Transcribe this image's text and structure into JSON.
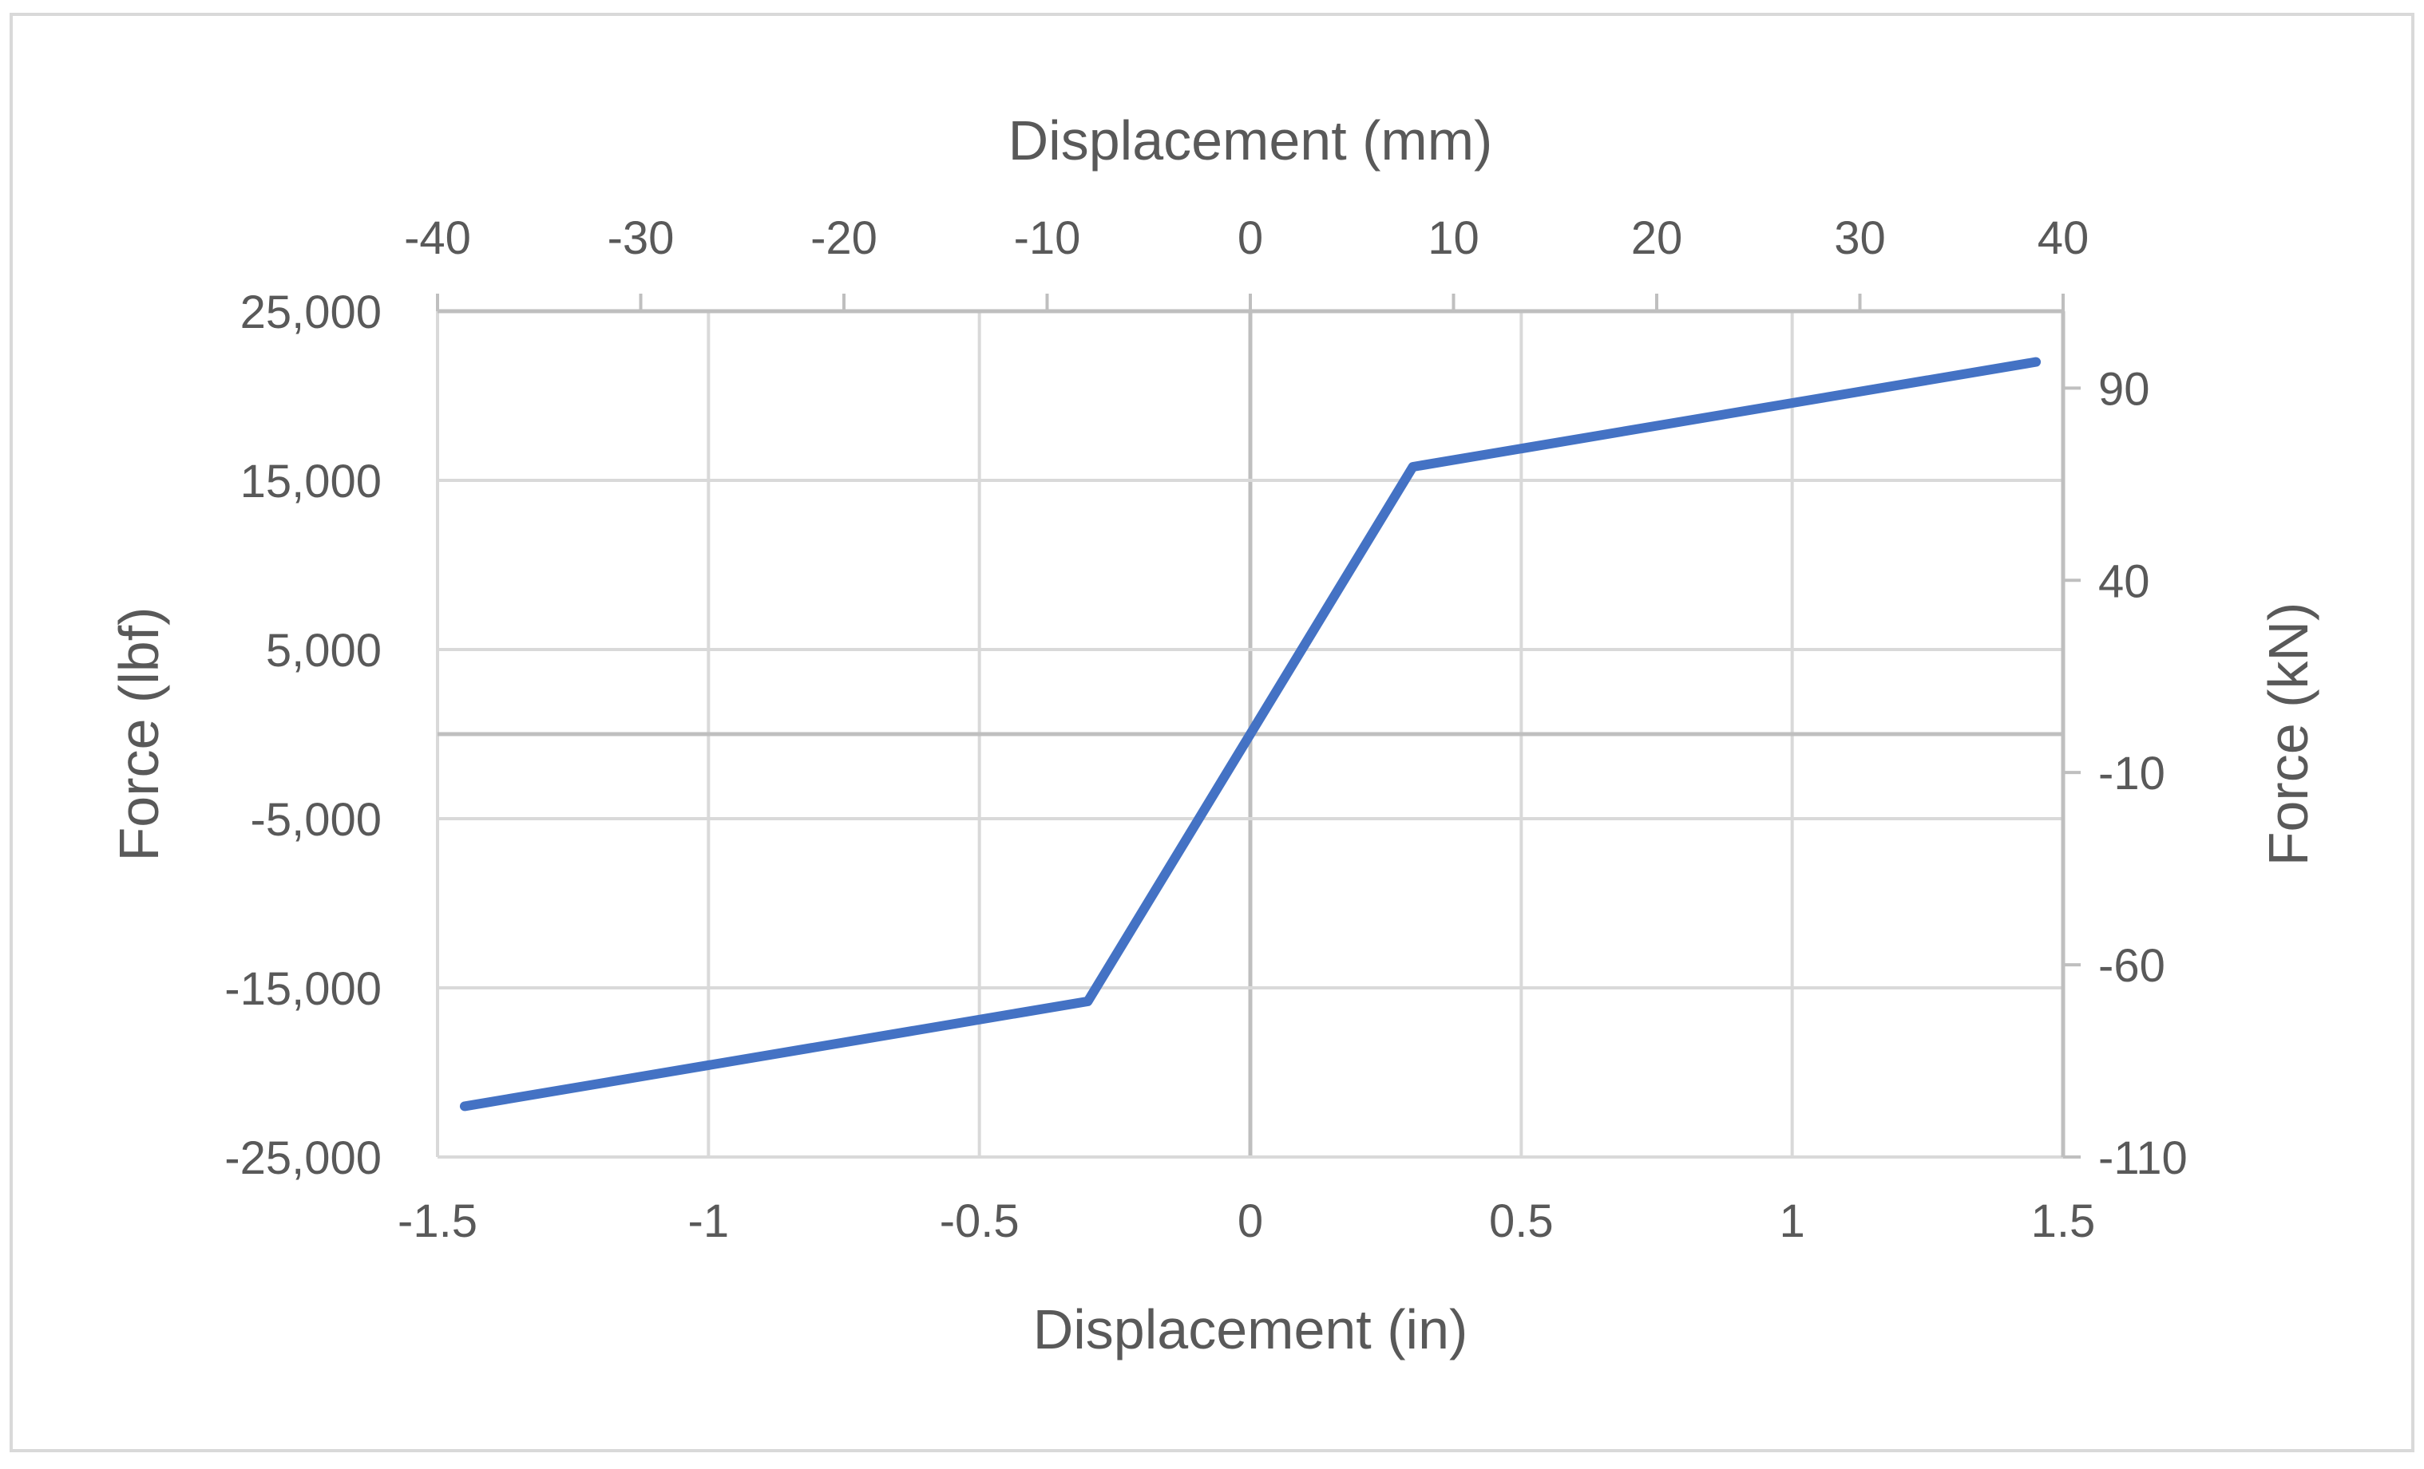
{
  "chart_data": {
    "type": "line",
    "title": "",
    "xlabel": "Displacement (in)",
    "x2label": "Displacement (mm)",
    "ylabel": "Force (lbf)",
    "y2label": "Force (kN)",
    "xlim": [
      -1.5,
      1.5
    ],
    "ylim": [
      -25000,
      25000
    ],
    "x2lim": [
      -40,
      40
    ],
    "y2lim": [
      -110,
      110
    ],
    "x_ticks": [
      "-1.5",
      "-1",
      "-0.5",
      "0",
      "0.5",
      "1",
      "1.5"
    ],
    "x_tick_values": [
      -1.5,
      -1,
      -0.5,
      0,
      0.5,
      1,
      1.5
    ],
    "y_ticks": [
      "-25,000",
      "-15,000",
      "-5,000",
      "5,000",
      "15,000",
      "25,000"
    ],
    "y_tick_values": [
      -25000,
      -15000,
      -5000,
      5000,
      15000,
      25000
    ],
    "x2_ticks": [
      "-40",
      "-30",
      "-20",
      "-10",
      "0",
      "10",
      "20",
      "30",
      "40"
    ],
    "x2_tick_values": [
      -40,
      -30,
      -20,
      -10,
      0,
      10,
      20,
      30,
      40
    ],
    "y2_ticks": [
      "-110",
      "-60",
      "-10",
      "40",
      "90"
    ],
    "y2_tick_values": [
      -110,
      -60,
      -10,
      40,
      90
    ],
    "grid": true,
    "colors": {
      "line": "#4472C4",
      "grid": "#D9D9D9",
      "axis": "#BFBFBF",
      "text": "#595959",
      "frame": "#D9D9D9"
    },
    "series": [
      {
        "x": [
          -1.45,
          -0.3,
          0,
          0.3,
          1.45
        ],
        "y": [
          -22000,
          -15800,
          0,
          15800,
          22000
        ]
      }
    ]
  }
}
